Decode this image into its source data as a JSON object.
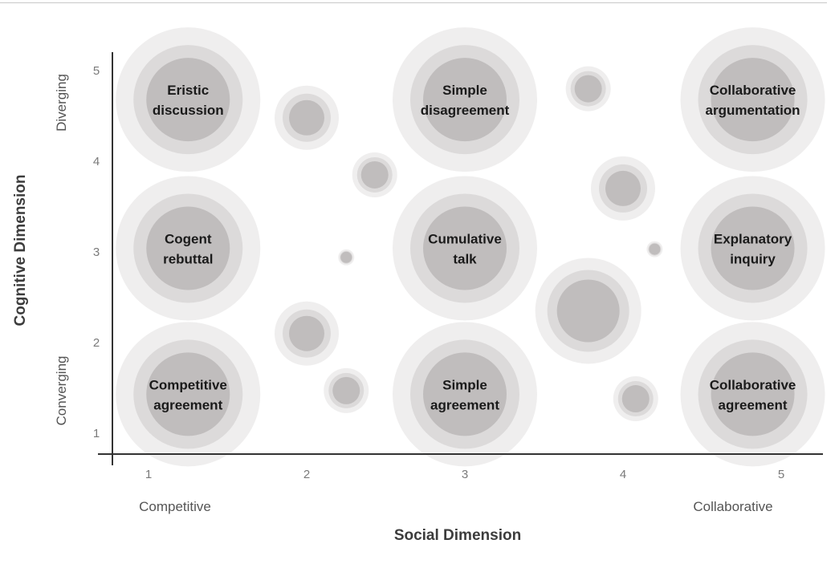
{
  "chart_data": {
    "type": "scatter",
    "title": "",
    "xlabel": "Social Dimension",
    "ylabel": "Cognitive Dimension",
    "x_ticks": [
      "1",
      "2",
      "3",
      "4",
      "5"
    ],
    "y_ticks": [
      "1",
      "2",
      "3",
      "4",
      "5"
    ],
    "x_pole_labels": {
      "low": "Competitive",
      "high": "Collaborative"
    },
    "y_pole_labels": {
      "low": "Converging",
      "high": "Diverging"
    },
    "xlim": [
      0.78,
      5.05
    ],
    "ylim": [
      0.78,
      5.2
    ],
    "grid": false,
    "legend": "none",
    "colors": {
      "ring_outer": "#efeeee",
      "ring_middle": "#dcdada",
      "core": "#c0bdbd",
      "axis": "#333333"
    },
    "points": [
      {
        "x": 1.25,
        "y": 4.68,
        "size": "large",
        "label": [
          "Eristic",
          "discussion"
        ]
      },
      {
        "x": 2.0,
        "y": 4.48,
        "size": "small",
        "label": []
      },
      {
        "x": 2.43,
        "y": 3.85,
        "size": "tiny",
        "label": []
      },
      {
        "x": 3.0,
        "y": 4.68,
        "size": "large",
        "label": [
          "Simple",
          "disagreement"
        ]
      },
      {
        "x": 3.78,
        "y": 4.8,
        "size": "tiny",
        "label": []
      },
      {
        "x": 4.0,
        "y": 3.7,
        "size": "small",
        "label": []
      },
      {
        "x": 4.82,
        "y": 4.68,
        "size": "large",
        "label": [
          "Collaborative",
          "argumentation"
        ]
      },
      {
        "x": 1.25,
        "y": 3.04,
        "size": "large",
        "label": [
          "Cogent",
          "rebuttal"
        ]
      },
      {
        "x": 2.25,
        "y": 2.94,
        "size": "dot",
        "label": []
      },
      {
        "x": 3.0,
        "y": 3.04,
        "size": "large",
        "label": [
          "Cumulative",
          "talk"
        ]
      },
      {
        "x": 3.78,
        "y": 2.35,
        "size": "medium",
        "label": []
      },
      {
        "x": 4.2,
        "y": 3.03,
        "size": "dot",
        "label": []
      },
      {
        "x": 4.82,
        "y": 3.04,
        "size": "large",
        "label": [
          "Explanatory",
          "inquiry"
        ]
      },
      {
        "x": 2.0,
        "y": 2.1,
        "size": "small",
        "label": []
      },
      {
        "x": 1.25,
        "y": 1.43,
        "size": "large",
        "label": [
          "Competitive",
          "agreement"
        ]
      },
      {
        "x": 2.25,
        "y": 1.47,
        "size": "tiny",
        "label": []
      },
      {
        "x": 3.0,
        "y": 1.43,
        "size": "large",
        "label": [
          "Simple",
          "agreement"
        ]
      },
      {
        "x": 4.08,
        "y": 1.38,
        "size": "tiny",
        "label": []
      },
      {
        "x": 4.82,
        "y": 1.43,
        "size": "large",
        "label": [
          "Collaborative",
          "agreement"
        ]
      }
    ]
  }
}
